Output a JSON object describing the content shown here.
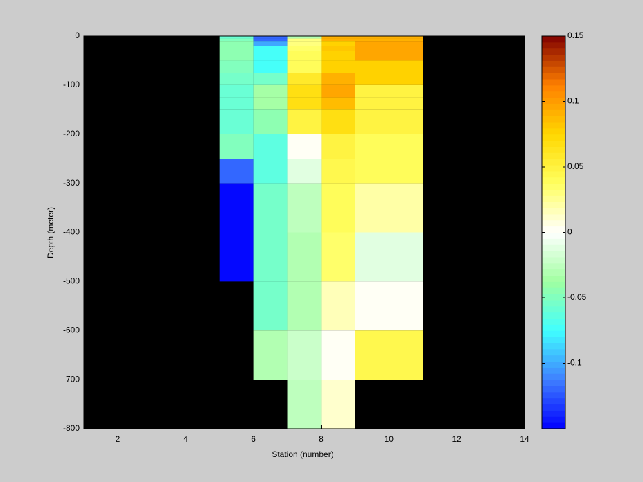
{
  "chart_data": {
    "type": "heatmap",
    "xlabel": "Station (number)",
    "ylabel": "Depth (meter)",
    "x": [
      5,
      6,
      7,
      8,
      9,
      11
    ],
    "y": [
      0,
      -5,
      -10,
      -20,
      -30,
      -50,
      -75,
      -100,
      -125,
      -150,
      -200,
      -250,
      -300,
      -400,
      -500,
      -600,
      -700,
      -800
    ],
    "values": [
      [
        -0.06,
        -0.05,
        -0.045,
        -0.045,
        -0.045,
        -0.05,
        -0.055,
        -0.06,
        -0.06,
        -0.06,
        -0.05,
        -0.12,
        -0.15,
        -0.15,
        null,
        null,
        null
      ],
      [
        -0.12,
        -0.12,
        -0.1,
        -0.075,
        -0.075,
        -0.075,
        -0.055,
        -0.035,
        -0.035,
        -0.045,
        -0.065,
        -0.065,
        -0.055,
        -0.055,
        -0.055,
        -0.03,
        null
      ],
      [
        -0.03,
        0.03,
        0.03,
        0.035,
        0.04,
        0.04,
        0.06,
        0.07,
        0.07,
        0.05,
        0.002,
        -0.01,
        -0.025,
        -0.03,
        -0.03,
        -0.02,
        -0.025
      ],
      [
        0.09,
        0.09,
        0.075,
        0.08,
        0.075,
        0.075,
        0.09,
        0.095,
        0.085,
        0.07,
        0.05,
        0.045,
        0.04,
        0.035,
        0.015,
        0.003,
        0.01
      ],
      [
        0.09,
        0.09,
        0.095,
        0.095,
        0.095,
        0.075,
        0.075,
        0.05,
        0.05,
        0.05,
        0.04,
        0.04,
        0.02,
        -0.01,
        0.002,
        0.045,
        null
      ]
    ],
    "xlim": [
      1,
      14
    ],
    "xticks": [
      2,
      4,
      6,
      8,
      10,
      12,
      14
    ],
    "ylim": [
      -800,
      0
    ],
    "yticks": [
      -800,
      -700,
      -600,
      -500,
      -400,
      -300,
      -200,
      -100,
      0
    ],
    "clim": [
      -0.15,
      0.15
    ],
    "cticks": [
      -0.1,
      -0.05,
      0,
      0.05,
      0.1,
      0.15
    ],
    "colormap": [
      "#0000ff",
      "#3f7fff",
      "#40ffff",
      "#a0ffa0",
      "#ffffff",
      "#ffff60",
      "#ffd700",
      "#ff8000",
      "#800000"
    ],
    "missing_color": "#000000"
  }
}
